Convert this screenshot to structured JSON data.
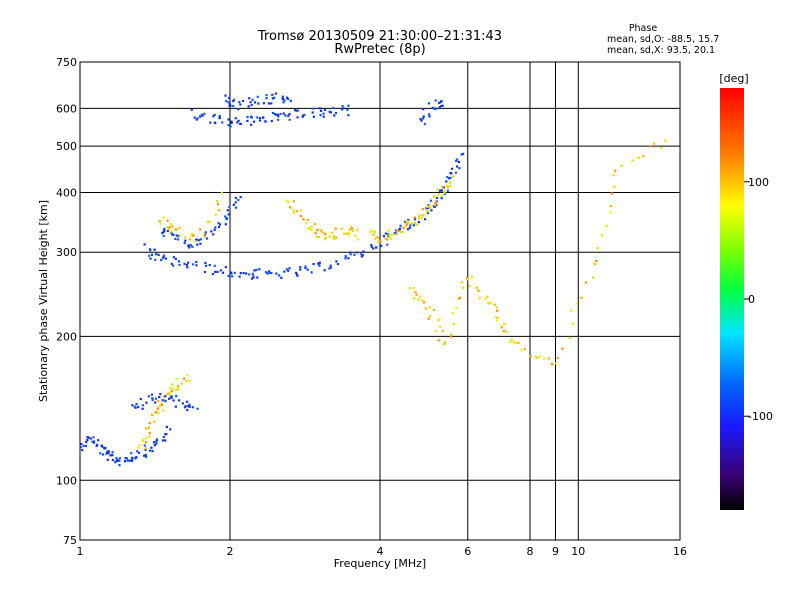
{
  "chart_data": {
    "type": "scatter",
    "title": "Tromsø 20130509 21:30:00–21:31:43",
    "subtitle": "RwPretec (8p)",
    "xlabel": "Frequency [MHz]",
    "ylabel": "Stationary phase Virtual Height [km]",
    "x_scale": "log",
    "y_scale": "log",
    "xlim": [
      1,
      16
    ],
    "ylim": [
      75,
      750
    ],
    "x_ticks": [
      1,
      2,
      4,
      6,
      8,
      9,
      10,
      16
    ],
    "x_tick_labels": [
      "1",
      "2",
      "4",
      "6",
      "8",
      "9",
      "10",
      "16"
    ],
    "y_ticks": [
      75,
      100,
      200,
      300,
      400,
      500,
      600,
      750
    ],
    "y_tick_labels": [
      "75",
      "100",
      "200",
      "300",
      "400",
      "500",
      "600",
      "750"
    ],
    "grid": true,
    "phase_stats": {
      "heading": "Phase",
      "line_o": "mean, sd,O: -88.5, 15.7",
      "line_x": "mean, sd,X:  93.5, 20.1"
    },
    "colorbar": {
      "label": "[deg]",
      "range": [
        -180,
        180
      ],
      "ticks": [
        100,
        0,
        -100
      ],
      "tick_labels": [
        "100",
        "0",
        "-100"
      ]
    },
    "traces": [
      {
        "x": [
          1.0,
          1.05,
          1.1,
          1.15,
          1.2,
          1.27,
          1.35,
          1.43,
          1.52
        ],
        "y": [
          118,
          123,
          116,
          112,
          110,
          112,
          115,
          120,
          128
        ],
        "phase": -100
      },
      {
        "x": [
          1.33,
          1.38,
          1.43,
          1.48,
          1.55,
          1.65
        ],
        "y": [
          115,
          130,
          140,
          150,
          158,
          165
        ],
        "phase": 100
      },
      {
        "x": [
          1.28,
          1.38,
          1.5,
          1.6,
          1.7
        ],
        "y": [
          140,
          148,
          150,
          145,
          140
        ],
        "phase": -100
      },
      {
        "x": [
          1.35,
          1.45,
          1.6,
          1.8,
          2.0,
          2.2,
          2.4,
          2.7,
          3.0,
          3.4,
          3.8,
          4.2,
          4.6,
          5.0,
          5.3,
          5.6,
          5.8
        ],
        "y": [
          305,
          290,
          285,
          278,
          272,
          270,
          270,
          272,
          278,
          290,
          305,
          325,
          345,
          370,
          400,
          440,
          480
        ],
        "phase": -100
      },
      {
        "x": [
          1.45,
          1.55,
          1.7,
          1.85,
          2.0,
          2.1
        ],
        "y": [
          335,
          320,
          310,
          330,
          360,
          395
        ],
        "phase": -100
      },
      {
        "x": [
          1.45,
          1.55,
          1.75,
          1.95
        ],
        "y": [
          350,
          330,
          320,
          400
        ],
        "phase": 100
      },
      {
        "x": [
          2.6,
          2.8,
          3.0,
          3.2,
          3.4,
          3.6
        ],
        "y": [
          390,
          350,
          330,
          320,
          335,
          325
        ],
        "phase": 100
      },
      {
        "x": [
          3.8,
          4.1,
          4.4,
          4.7,
          5.0,
          5.3,
          5.6
        ],
        "y": [
          330,
          320,
          335,
          350,
          370,
          400,
          430
        ],
        "phase": 100
      },
      {
        "x": [
          1.7,
          1.85,
          2.0,
          2.2,
          2.4,
          2.6,
          2.9,
          3.2,
          3.5
        ],
        "y": [
          585,
          570,
          560,
          565,
          575,
          580,
          585,
          590,
          595
        ],
        "phase": -100
      },
      {
        "x": [
          1.95,
          2.05,
          2.3,
          2.5,
          2.7
        ],
        "y": [
          625,
          610,
          620,
          630,
          620
        ],
        "phase": -100
      },
      {
        "x": [
          4.8,
          5.1,
          5.4
        ],
        "y": [
          560,
          610,
          620
        ],
        "phase": -100
      },
      {
        "x": [
          4.6,
          5.0,
          5.4,
          5.9,
          6.5,
          7.0,
          7.5,
          9.0,
          10.8,
          12.0,
          15.5
        ],
        "y": [
          250,
          230,
          190,
          270,
          240,
          215,
          190,
          175,
          280,
          450,
          520
        ],
        "phase": 100
      }
    ]
  }
}
